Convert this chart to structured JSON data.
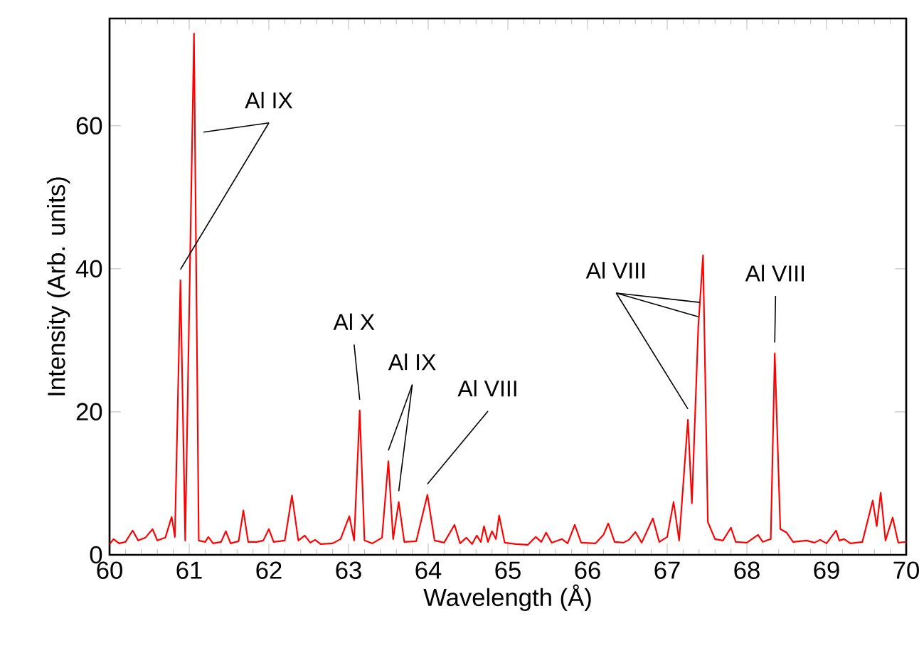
{
  "chart_data": {
    "type": "line",
    "xlabel": "Wavelength (Å)",
    "ylabel": "Intensity (Arb. units)",
    "color": "#ff0000",
    "xlim": [
      60,
      70
    ],
    "ylim": [
      0,
      75
    ],
    "xticks": [
      60,
      61,
      62,
      63,
      64,
      65,
      66,
      67,
      68,
      69,
      70
    ],
    "yticks": [
      0,
      20,
      40,
      60
    ],
    "x": [
      60.0,
      60.05,
      60.12,
      60.2,
      60.29,
      60.36,
      60.45,
      60.54,
      60.6,
      60.7,
      60.78,
      60.82,
      60.89,
      60.95,
      61.06,
      61.12,
      61.2,
      61.24,
      61.3,
      61.4,
      61.46,
      61.52,
      61.62,
      61.68,
      61.74,
      61.85,
      61.93,
      62.0,
      62.06,
      62.2,
      62.29,
      62.37,
      62.45,
      62.52,
      62.58,
      62.65,
      62.8,
      62.9,
      63.01,
      63.07,
      63.14,
      63.2,
      63.3,
      63.42,
      63.5,
      63.56,
      63.63,
      63.7,
      63.85,
      63.99,
      64.08,
      64.2,
      64.33,
      64.4,
      64.48,
      64.55,
      64.61,
      64.66,
      64.7,
      64.75,
      64.8,
      64.85,
      64.89,
      64.96,
      65.1,
      65.25,
      65.35,
      65.42,
      65.48,
      65.55,
      65.68,
      65.75,
      65.84,
      65.92,
      66.1,
      66.2,
      66.26,
      66.34,
      66.45,
      66.52,
      66.6,
      66.68,
      66.82,
      66.9,
      67.0,
      67.08,
      67.15,
      67.26,
      67.31,
      67.39,
      67.45,
      67.51,
      67.6,
      67.7,
      67.8,
      67.86,
      68.0,
      68.14,
      68.2,
      68.3,
      68.35,
      68.42,
      68.5,
      68.58,
      68.75,
      68.85,
      68.92,
      69.0,
      69.12,
      69.16,
      69.22,
      69.3,
      69.45,
      69.58,
      69.63,
      69.68,
      69.74,
      69.83,
      69.9,
      70.0
    ],
    "values": [
      1.5,
      2.2,
      1.6,
      1.8,
      3.4,
      2.0,
      2.4,
      3.6,
      2.0,
      2.4,
      5.3,
      2.5,
      38.4,
      2.0,
      72.9,
      2.0,
      1.8,
      2.5,
      1.6,
      1.8,
      3.3,
      1.6,
      1.9,
      6.2,
      1.8,
      1.8,
      2.0,
      3.6,
      1.8,
      2.0,
      8.3,
      2.0,
      2.7,
      1.7,
      2.1,
      1.5,
      1.6,
      2.2,
      5.4,
      2.0,
      20.2,
      2.0,
      1.6,
      2.4,
      13.1,
      2.2,
      7.4,
      1.8,
      1.9,
      8.4,
      2.0,
      1.7,
      4.2,
      1.6,
      2.4,
      1.5,
      2.7,
      1.8,
      4.0,
      1.8,
      3.3,
      2.2,
      5.5,
      1.7,
      1.5,
      1.4,
      2.5,
      1.8,
      3.1,
      1.7,
      2.2,
      1.6,
      4.2,
      1.7,
      1.6,
      2.8,
      4.4,
      1.8,
      1.7,
      2.1,
      3.2,
      1.7,
      5.1,
      1.8,
      2.5,
      7.4,
      2.0,
      18.9,
      7.2,
      31.8,
      41.9,
      4.6,
      2.2,
      2.0,
      3.8,
      1.8,
      1.7,
      2.8,
      1.8,
      2.2,
      28.2,
      3.6,
      3.1,
      1.8,
      2.0,
      1.7,
      2.1,
      1.6,
      3.4,
      2.0,
      2.2,
      1.6,
      1.8,
      7.6,
      4.0,
      8.7,
      2.0,
      5.2,
      1.7,
      1.8
    ],
    "annotations": [
      {
        "text": "Al IX",
        "x": 60.89,
        "y": 38.4
      },
      {
        "text": "Al X",
        "x": 63.14,
        "y": 20.2
      },
      {
        "text": "Al IX",
        "x": 63.5,
        "y": 13.1
      },
      {
        "text": "Al VIII",
        "x": 63.99,
        "y": 8.4
      },
      {
        "text": "Al VIII",
        "x": 67.26,
        "y": 18.9
      },
      {
        "text": "Al VIII",
        "x": 68.35,
        "y": 28.2
      }
    ]
  }
}
